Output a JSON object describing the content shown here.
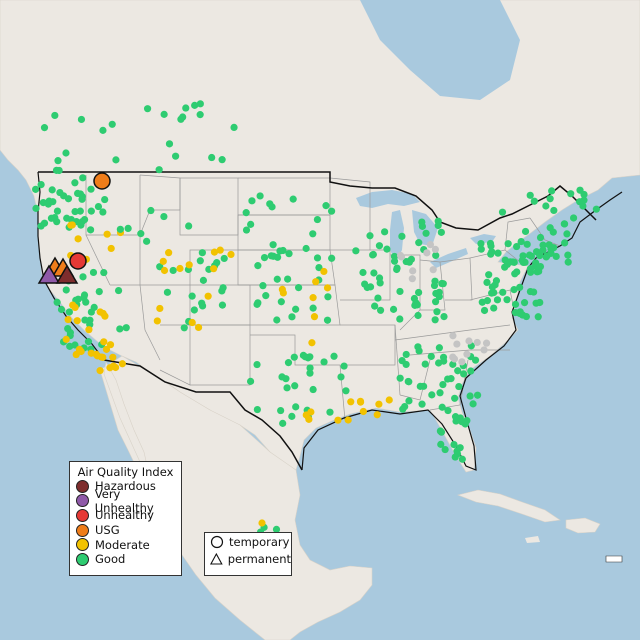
{
  "legend_aqi": {
    "title": "Air Quality Index",
    "items": [
      {
        "label": "Hazardous",
        "color": "#7e2d2d"
      },
      {
        "label": "Very Unhealthy",
        "color": "#8f59a8"
      },
      {
        "label": "Unhealthy",
        "color": "#e53935"
      },
      {
        "label": "USG",
        "color": "#ef7d1a"
      },
      {
        "label": "Moderate",
        "color": "#f2c200"
      },
      {
        "label": "Good",
        "color": "#2ecc71"
      }
    ]
  },
  "legend_site_type": {
    "items": [
      {
        "label": "temporary",
        "icon": "circle-icon"
      },
      {
        "label": "permanent",
        "icon": "triangle-icon"
      }
    ]
  },
  "colors": {
    "ocean": "#a9c9de",
    "land": "#ece8e2",
    "border": "#111111",
    "state_line": "#9a9a9a",
    "nodata_marker": "#c4c4c4"
  }
}
